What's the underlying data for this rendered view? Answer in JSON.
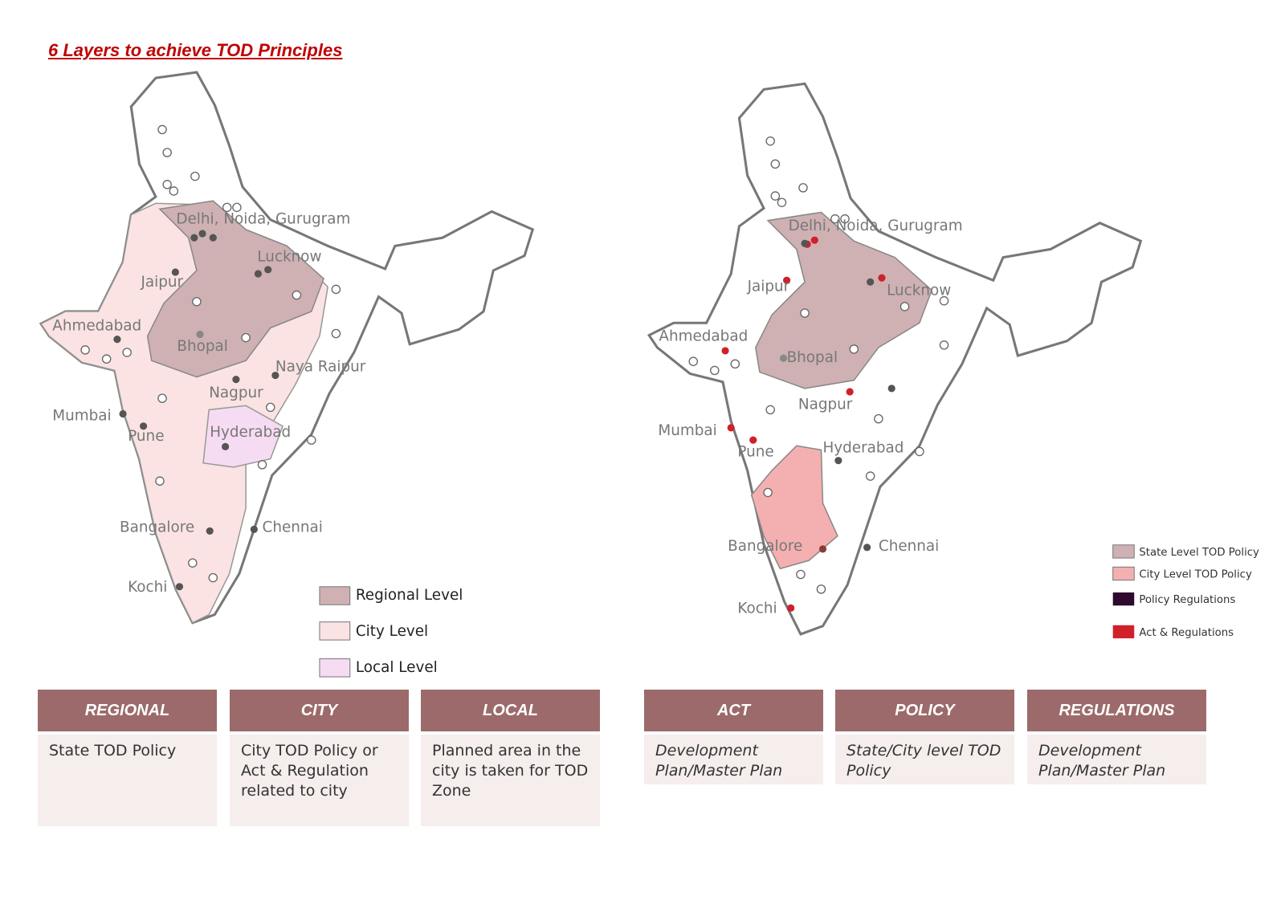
{
  "title": "6 Layers to achieve TOD Principles",
  "maps": [
    {
      "cities": [
        "Delhi, Noida, Gurugram",
        "Lucknow",
        "Jaipur",
        "Ahmedabad",
        "Bhopal",
        "Naya Raipur",
        "Nagpur",
        "Mumbai",
        "Pune",
        "Hyderabad",
        "Bangalore",
        "Chennai",
        "Kochi"
      ],
      "legend": [
        "Regional Level",
        "City Level",
        "Local Level"
      ]
    },
    {
      "cities": [
        "Delhi, Noida, Gurugram",
        "Jaipur",
        "Lucknow",
        "Ahmedabad",
        "Bhopal",
        "Nagpur",
        "Mumbai",
        "Pune",
        "Hyderabad",
        "Bangalore",
        "Chennai",
        "Kochi"
      ],
      "legend": [
        "State Level TOD Policy",
        "City Level TOD Policy",
        "Policy Regulations",
        "Act & Regulations"
      ]
    }
  ],
  "tables": [
    {
      "columns": [
        {
          "header": "REGIONAL",
          "text": "State TOD Policy"
        },
        {
          "header": "CITY",
          "text": "City TOD Policy or Act & Regulation related to city"
        },
        {
          "header": "LOCAL",
          "text": "Planned area in the city is taken for TOD Zone"
        }
      ]
    },
    {
      "columns": [
        {
          "header": "ACT",
          "text": "Development Plan/Master Plan"
        },
        {
          "header": "POLICY",
          "text": "State/City level TOD Policy"
        },
        {
          "header": "REGULATIONS",
          "text": "Development Plan/Master Plan"
        }
      ]
    }
  ]
}
